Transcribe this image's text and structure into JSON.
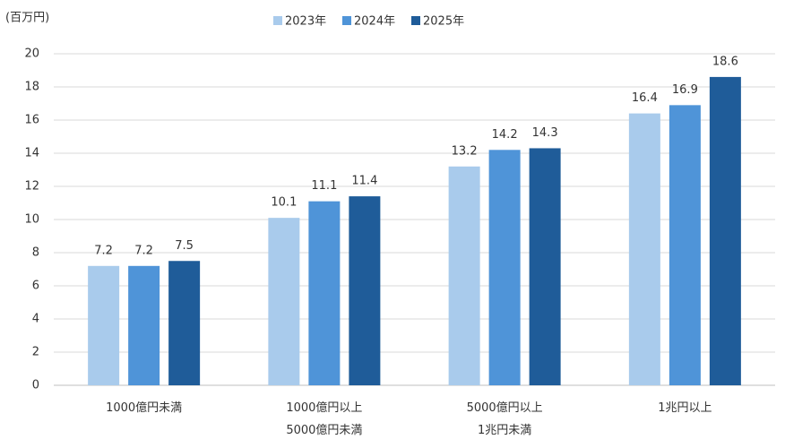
{
  "chart_data": {
    "type": "bar",
    "y_axis_label": "(百万円)",
    "categories": [
      "1000億円未満",
      "1000億円以上\n5000億円未満",
      "5000億円以上\n1兆円未満",
      "1兆円以上"
    ],
    "series": [
      {
        "name": "2023年",
        "color": "#a9cbec",
        "values": [
          7.2,
          10.1,
          13.2,
          16.4
        ]
      },
      {
        "name": "2024年",
        "color": "#4f94d8",
        "values": [
          7.2,
          11.1,
          14.2,
          16.9
        ]
      },
      {
        "name": "2025年",
        "color": "#1f5c99",
        "values": [
          7.5,
          11.4,
          14.3,
          18.6
        ]
      }
    ],
    "ylim": [
      0,
      20
    ],
    "yticks": [
      0,
      2,
      4,
      6,
      8,
      10,
      12,
      14,
      16,
      18,
      20
    ],
    "grid": true,
    "legend": "top"
  }
}
